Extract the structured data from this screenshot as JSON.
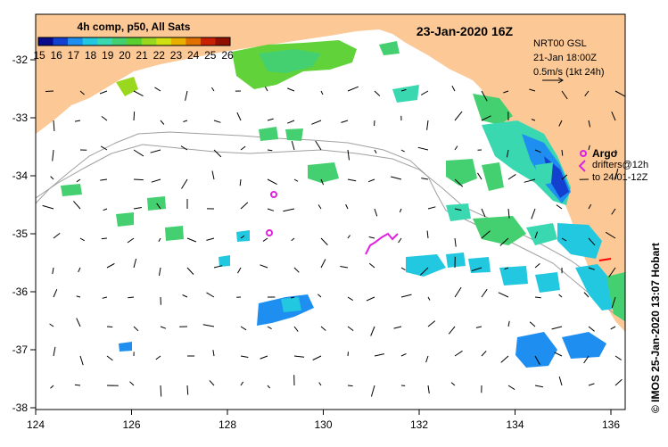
{
  "title": "23-Jan-2020 16Z",
  "colorbar": {
    "title": "4h comp, p50, All Sats",
    "ticks": [
      "15",
      "16",
      "17",
      "18",
      "19",
      "20",
      "21",
      "22",
      "23",
      "24",
      "25",
      "26"
    ],
    "colors": [
      "#0a0a8c",
      "#1440d0",
      "#1e8ff0",
      "#22c8e0",
      "#3ad8b0",
      "#44d070",
      "#5ad030",
      "#9ad820",
      "#d0e010",
      "#e8b000",
      "#e07000",
      "#c82000",
      "#901000"
    ]
  },
  "info": {
    "line1": "NRT00 GSL",
    "line2": "21-Jan 18:00Z",
    "line3": "0.5m/s (1kt 24h)"
  },
  "argo": {
    "label": "Argo",
    "drifters_line1": "drifters@12h",
    "drifters_line2": "to 24/01-12Z",
    "color": "#e020e0"
  },
  "credit": "© IMOS 25-Jan-2020 13:07 Hobart",
  "axes": {
    "x_ticks": [
      "124",
      "126",
      "128",
      "130",
      "132",
      "134",
      "136"
    ],
    "y_ticks": [
      "-32",
      "-33",
      "-34",
      "-35",
      "-36",
      "-37",
      "-38"
    ]
  },
  "colors": {
    "land": "#fcc896",
    "sea": "#ffffff",
    "contour": "#a0a0a0",
    "arrow": "#000000"
  }
}
